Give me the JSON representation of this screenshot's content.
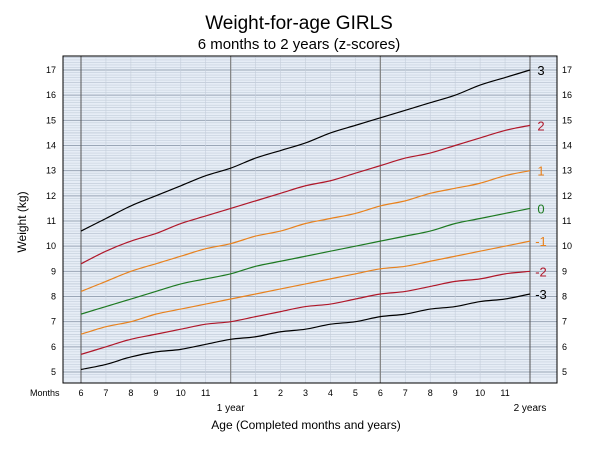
{
  "chart_data": {
    "type": "line",
    "title": "Weight-for-age  GIRLS",
    "subtitle": "6 months to 2 years (z-scores)",
    "ylabel": "Weight (kg)",
    "xlabel": "Age (Completed months and years)",
    "x_axis_prefix": "Months",
    "x_major_labels": [
      {
        "age_months": 12,
        "label": "1 year"
      },
      {
        "age_months": 24,
        "label": "2 years"
      }
    ],
    "x_tick_labels": [
      {
        "age_months": 6,
        "label": "6"
      },
      {
        "age_months": 7,
        "label": "7"
      },
      {
        "age_months": 8,
        "label": "8"
      },
      {
        "age_months": 9,
        "label": "9"
      },
      {
        "age_months": 10,
        "label": "10"
      },
      {
        "age_months": 11,
        "label": "11"
      },
      {
        "age_months": 13,
        "label": "1"
      },
      {
        "age_months": 14,
        "label": "2"
      },
      {
        "age_months": 15,
        "label": "3"
      },
      {
        "age_months": 16,
        "label": "4"
      },
      {
        "age_months": 17,
        "label": "5"
      },
      {
        "age_months": 18,
        "label": "6"
      },
      {
        "age_months": 19,
        "label": "7"
      },
      {
        "age_months": 20,
        "label": "8"
      },
      {
        "age_months": 21,
        "label": "9"
      },
      {
        "age_months": 22,
        "label": "10"
      },
      {
        "age_months": 23,
        "label": "11"
      }
    ],
    "y_ticks": [
      5,
      6,
      7,
      8,
      9,
      10,
      11,
      12,
      13,
      14,
      15,
      16,
      17
    ],
    "xlim": [
      6,
      24
    ],
    "ylim": [
      4.8,
      17.5
    ],
    "grid": true,
    "x": [
      6,
      7,
      8,
      9,
      10,
      11,
      12,
      13,
      14,
      15,
      16,
      17,
      18,
      19,
      20,
      21,
      22,
      23,
      24
    ],
    "series": [
      {
        "name": "3",
        "color": "#000000",
        "values": [
          10.6,
          11.1,
          11.6,
          12.0,
          12.4,
          12.8,
          13.1,
          13.5,
          13.8,
          14.1,
          14.5,
          14.8,
          15.1,
          15.4,
          15.7,
          16.0,
          16.4,
          16.7,
          17.0
        ]
      },
      {
        "name": "2",
        "color": "#b0182a",
        "values": [
          9.3,
          9.8,
          10.2,
          10.5,
          10.9,
          11.2,
          11.5,
          11.8,
          12.1,
          12.4,
          12.6,
          12.9,
          13.2,
          13.5,
          13.7,
          14.0,
          14.3,
          14.6,
          14.8
        ]
      },
      {
        "name": "1",
        "color": "#e8821e",
        "values": [
          8.2,
          8.6,
          9.0,
          9.3,
          9.6,
          9.9,
          10.1,
          10.4,
          10.6,
          10.9,
          11.1,
          11.3,
          11.6,
          11.8,
          12.1,
          12.3,
          12.5,
          12.8,
          13.0
        ]
      },
      {
        "name": "0",
        "color": "#1e7a22",
        "values": [
          7.3,
          7.6,
          7.9,
          8.2,
          8.5,
          8.7,
          8.9,
          9.2,
          9.4,
          9.6,
          9.8,
          10.0,
          10.2,
          10.4,
          10.6,
          10.9,
          11.1,
          11.3,
          11.5
        ]
      },
      {
        "name": "-1",
        "color": "#e8821e",
        "values": [
          6.5,
          6.8,
          7.0,
          7.3,
          7.5,
          7.7,
          7.9,
          8.1,
          8.3,
          8.5,
          8.7,
          8.9,
          9.1,
          9.2,
          9.4,
          9.6,
          9.8,
          10.0,
          10.2
        ]
      },
      {
        "name": "-2",
        "color": "#b0182a",
        "values": [
          5.7,
          6.0,
          6.3,
          6.5,
          6.7,
          6.9,
          7.0,
          7.2,
          7.4,
          7.6,
          7.7,
          7.9,
          8.1,
          8.2,
          8.4,
          8.6,
          8.7,
          8.9,
          9.0
        ]
      },
      {
        "name": "-3",
        "color": "#000000",
        "values": [
          5.1,
          5.3,
          5.6,
          5.8,
          5.9,
          6.1,
          6.3,
          6.4,
          6.6,
          6.7,
          6.9,
          7.0,
          7.2,
          7.3,
          7.5,
          7.6,
          7.8,
          7.9,
          8.1
        ]
      }
    ],
    "colors": {
      "plot_background": "#e6edf6",
      "minor_grid": "#c4cedb",
      "major_grid": "#9aa6b6",
      "year_lines": "#808080",
      "axis": "#000000"
    }
  }
}
